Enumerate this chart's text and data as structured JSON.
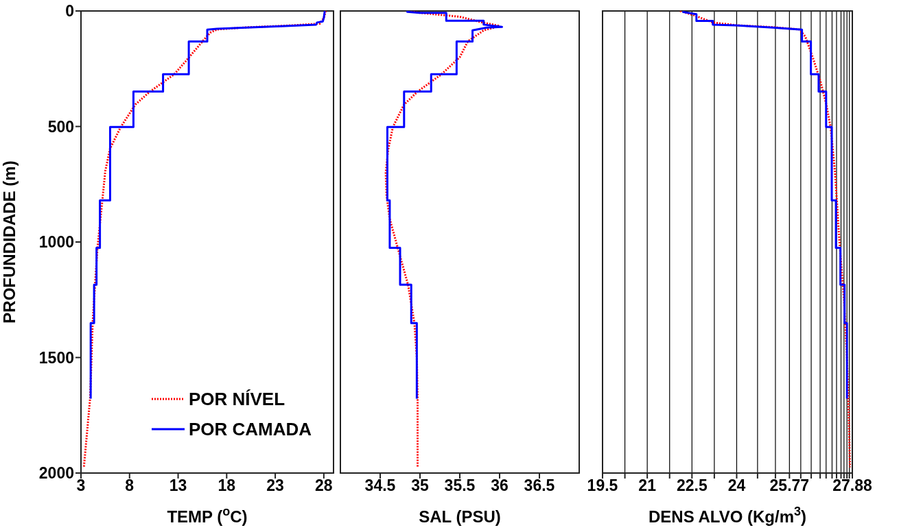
{
  "chart_data": [
    {
      "type": "line",
      "xlabel": "TEMP ($^{o}$C)",
      "ylabel": "PROFUNDIDADE (m)",
      "xlim": [
        3,
        29
      ],
      "xticks": [
        3,
        8,
        13,
        18,
        23,
        28
      ],
      "ylim": [
        2000,
        0
      ],
      "yticks": [
        0,
        500,
        1000,
        1500,
        2000
      ],
      "grid": false,
      "legend": "bottom right",
      "marker": "none",
      "series": [
        {
          "name": "POR NÍVEL",
          "color": "#ff0000",
          "line_style": "dotted",
          "x": [
            28.2,
            28.0,
            27.6,
            24,
            20,
            17,
            16.3,
            15.5,
            13.8,
            12.6,
            10.1,
            8.6,
            7.1,
            6.0,
            5.5,
            5.2,
            4.7,
            4.45,
            4.2,
            3.95,
            3.3
          ],
          "values": [
            0,
            30,
            55,
            64,
            71,
            80,
            94,
            132,
            217,
            274,
            349,
            405,
            502,
            595,
            693,
            820,
            1025,
            1185,
            1351,
            1672,
            1975
          ]
        },
        {
          "name": "POR CAMADA",
          "color": "#0000ff",
          "line_style": "solid",
          "x": [
            28.1,
            28.0,
            27.9,
            27.3,
            27.2,
            24,
            20,
            17,
            16.0,
            16.0,
            14.1,
            14.1,
            11.45,
            11.45,
            8.4,
            8.4,
            6.0,
            6.0,
            4.95,
            4.95,
            4.6,
            4.6,
            4.35,
            4.35,
            4.0,
            4.0
          ],
          "values": [
            0,
            30,
            45,
            50,
            59,
            65,
            72,
            77,
            81,
            132,
            132,
            274,
            274,
            349,
            349,
            502,
            502,
            820,
            820,
            1025,
            1025,
            1185,
            1185,
            1351,
            1351,
            1678
          ]
        }
      ]
    },
    {
      "type": "line",
      "xlabel": "SAL (PSU)",
      "xlim": [
        34,
        37
      ],
      "xticks": [
        34.5,
        35,
        35.5,
        36,
        36.5
      ],
      "ylim": [
        2000,
        0
      ],
      "yticks": [
        0,
        500,
        1000,
        1500,
        2000
      ],
      "tick_labels": "x",
      "grid": false,
      "marker": "none",
      "series": [
        {
          "color": "#ff0000",
          "line_style": "dotted",
          "x": [
            34.85,
            35.0,
            35.5,
            35.79,
            36.0,
            35.8,
            35.6,
            35.5,
            35.27,
            34.97,
            34.8,
            34.66,
            34.6,
            34.57,
            34.58,
            34.62,
            34.72,
            34.85,
            34.93,
            34.96,
            34.97,
            34.97
          ],
          "values": [
            0,
            8,
            25,
            50,
            65,
            84,
            132,
            200,
            274,
            349,
            405,
            502,
            600,
            700,
            800,
            900,
            1025,
            1185,
            1351,
            1500,
            1672,
            1975
          ]
        },
        {
          "color": "#0000ff",
          "line_style": "solid",
          "x": [
            34.84,
            34.84,
            35.0,
            35.33,
            35.33,
            35.8,
            35.8,
            36.03,
            35.84,
            35.66,
            35.66,
            35.46,
            35.46,
            35.14,
            35.14,
            34.8,
            34.8,
            34.59,
            34.59,
            34.62,
            34.62,
            34.75,
            34.75,
            34.89,
            34.89,
            34.96,
            34.96
          ],
          "values": [
            0,
            4,
            8,
            8,
            42,
            42,
            59,
            69,
            72,
            84,
            132,
            132,
            274,
            274,
            349,
            349,
            502,
            502,
            820,
            820,
            1025,
            1025,
            1185,
            1185,
            1351,
            1351,
            1678
          ]
        }
      ]
    },
    {
      "type": "line",
      "xlabel": "DENS ALVO (Kg/m$^{3}$)",
      "xlim": [
        19.5,
        27.88
      ],
      "xticks": [
        19.5,
        {
          "value": 20.25,
          "label": null
        },
        21,
        {
          "value": 21.75,
          "label": null
        },
        22.5,
        {
          "value": 23.25,
          "label": null
        },
        24,
        {
          "value": 24.7,
          "label": null
        },
        {
          "value": 25.3,
          "label": null
        },
        25.77,
        {
          "value": 26.15,
          "label": null
        },
        {
          "value": 26.5,
          "label": null
        },
        {
          "value": 26.8,
          "label": null
        },
        {
          "value": 27.0,
          "label": null
        },
        {
          "value": 27.2,
          "label": null
        },
        {
          "value": 27.35,
          "label": null
        },
        {
          "value": 27.5,
          "label": null
        },
        {
          "value": 27.6,
          "label": null
        },
        {
          "value": 27.7,
          "label": null
        },
        {
          "value": 27.78,
          "label": null
        },
        27.88
      ],
      "ylim": [
        2000,
        0
      ],
      "yticks": [
        0,
        500,
        1000,
        1500,
        2000
      ],
      "tick_labels": "x",
      "grid": true,
      "marker": "none",
      "series": [
        {
          "color": "#ff0000",
          "line_style": "dotted",
          "x": [
            22.1,
            22.6,
            23.2,
            24,
            25.2,
            26.1,
            26.3,
            26.55,
            26.8,
            27.0,
            27.15,
            27.3,
            27.45,
            27.6,
            27.7,
            27.75,
            27.8
          ],
          "values": [
            0,
            20,
            50,
            62,
            70,
            80,
            110,
            200,
            300,
            400,
            502,
            700,
            1000,
            1250,
            1500,
            1700,
            1975
          ]
        },
        {
          "color": "#0000ff",
          "line_style": "solid",
          "x": [
            22.18,
            22.65,
            22.65,
            23.2,
            23.2,
            23.97,
            25.22,
            26.19,
            26.19,
            26.49,
            26.49,
            26.75,
            26.75,
            27.0,
            27.0,
            27.19,
            27.19,
            27.33,
            27.33,
            27.48,
            27.48,
            27.62,
            27.62,
            27.7,
            27.7
          ],
          "values": [
            4,
            14,
            43,
            43,
            59,
            62,
            72,
            81,
            132,
            132,
            274,
            274,
            349,
            349,
            502,
            502,
            820,
            820,
            1025,
            1025,
            1185,
            1185,
            1351,
            1351,
            1678
          ]
        }
      ]
    }
  ]
}
